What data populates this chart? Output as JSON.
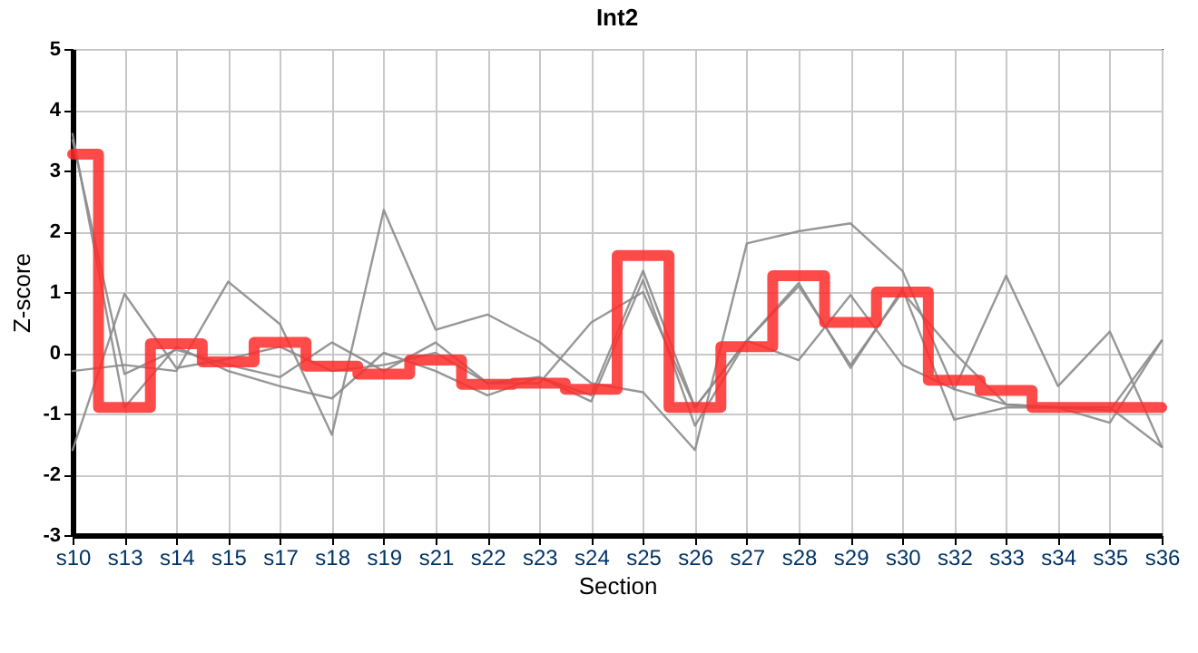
{
  "chart_data": {
    "type": "line",
    "title": "Int2",
    "xlabel": "Section",
    "ylabel": "Z-score",
    "categories": [
      "s10",
      "s13",
      "s14",
      "s15",
      "s17",
      "s18",
      "s19",
      "s21",
      "s22",
      "s23",
      "s24",
      "s25",
      "s26",
      "s27",
      "s28",
      "s29",
      "s30",
      "s32",
      "s33",
      "s34",
      "s35",
      "s36"
    ],
    "ylim": [
      -3,
      5
    ],
    "yticks": [
      -3,
      -2,
      -1,
      0,
      1,
      2,
      3,
      4,
      5
    ],
    "grid": true,
    "line_style": "solid",
    "marker": "none",
    "series": [
      {
        "type": "line",
        "color": "#8c8c8c",
        "values": [
          -0.3,
          -0.2,
          -0.3,
          1.17,
          0.47,
          -1.35,
          2.35,
          0.38,
          0.63,
          0.18,
          -0.5,
          -0.65,
          -1.6,
          1.8,
          2.0,
          2.13,
          1.35,
          -0.6,
          1.27,
          -0.55,
          0.35,
          -1.55
        ]
      },
      {
        "type": "line",
        "color": "#8c8c8c",
        "values": [
          3.5,
          -0.35,
          0.05,
          -0.2,
          -0.4,
          0.17,
          -0.3,
          0.17,
          -0.5,
          -0.4,
          -0.7,
          1.35,
          -0.9,
          0.2,
          1.1,
          -0.2,
          1.0,
          0.0,
          -0.85,
          -0.9,
          -0.95,
          0.2
        ]
      },
      {
        "type": "line",
        "color": "#8c8c8c",
        "values": [
          3.6,
          -0.9,
          0.1,
          -0.3,
          -0.55,
          -0.75,
          0.0,
          -0.3,
          -0.7,
          -0.4,
          -0.8,
          1.2,
          -1.2,
          0.2,
          1.15,
          -0.25,
          1.05,
          -1.1,
          -0.9,
          -0.9,
          -1.15,
          0.2
        ]
      },
      {
        "type": "line",
        "color": "#8c8c8c",
        "values": [
          -1.6,
          0.97,
          -0.25,
          -0.1,
          0.1,
          -0.3,
          -0.2,
          0.0,
          -0.5,
          -0.5,
          0.5,
          1.0,
          -0.9,
          0.2,
          -0.12,
          0.95,
          -0.2,
          -0.6,
          -0.85,
          -0.9,
          -0.9,
          -1.55
        ]
      },
      {
        "type": "step",
        "color": "#ff2a2a",
        "values": [
          3.27,
          -0.9,
          0.15,
          -0.15,
          0.17,
          -0.22,
          -0.35,
          -0.12,
          -0.52,
          -0.5,
          -0.6,
          1.6,
          -0.9,
          0.1,
          1.27,
          0.5,
          1.0,
          -0.45,
          -0.62,
          -0.9,
          -0.9,
          -0.9
        ]
      }
    ]
  }
}
